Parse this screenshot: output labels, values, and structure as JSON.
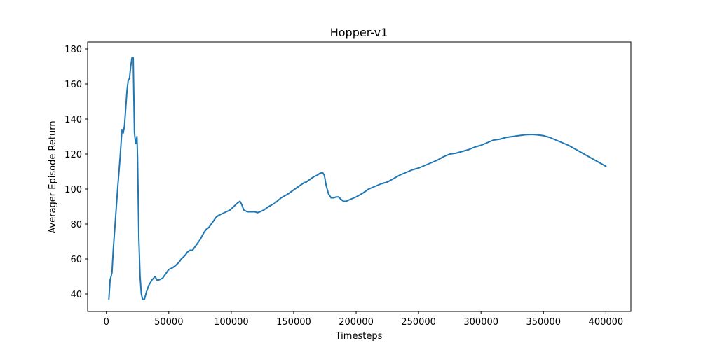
{
  "chart_data": {
    "type": "line",
    "title": "Hopper-v1",
    "xlabel": "Timesteps",
    "ylabel": "Averager Episode Return",
    "xlim": [
      -15000,
      420000
    ],
    "ylim": [
      30,
      184
    ],
    "grid": false,
    "legend": "none",
    "x_ticks": [
      0,
      50000,
      100000,
      150000,
      200000,
      250000,
      300000,
      350000,
      400000
    ],
    "x_tick_labels": [
      "0",
      "50000",
      "100000",
      "150000",
      "200000",
      "250000",
      "300000",
      "350000",
      "400000"
    ],
    "y_ticks": [
      40,
      60,
      80,
      100,
      120,
      140,
      160,
      180
    ],
    "y_tick_labels": [
      "40",
      "60",
      "80",
      "100",
      "120",
      "140",
      "160",
      "180"
    ],
    "series": [
      {
        "color": "#1f77b4",
        "x": [
          2000,
          3000,
          4500,
          5500,
          7000,
          9000,
          11000,
          12500,
          13500,
          14500,
          15500,
          16500,
          17500,
          18500,
          19500,
          20500,
          21500,
          22500,
          23500,
          24500,
          25000,
          26000,
          27000,
          28000,
          29000,
          30500,
          32000,
          34000,
          36500,
          39000,
          40500,
          42000,
          45000,
          48000,
          50000,
          53000,
          55000,
          58000,
          60000,
          63000,
          65000,
          67000,
          69000,
          72000,
          75000,
          78000,
          80000,
          82000,
          85000,
          88000,
          90000,
          93000,
          96000,
          99000,
          102000,
          105000,
          107000,
          108500,
          110000,
          113000,
          116000,
          119000,
          121000,
          123000,
          126000,
          130000,
          135000,
          140000,
          145000,
          150000,
          155000,
          158000,
          160000,
          163000,
          166000,
          169000,
          171000,
          173000,
          174500,
          176000,
          178000,
          180000,
          182000,
          184000,
          186000,
          188000,
          190000,
          192000,
          195000,
          200000,
          205000,
          210000,
          215000,
          220000,
          225000,
          230000,
          235000,
          240000,
          245000,
          250000,
          255000,
          260000,
          265000,
          270000,
          275000,
          280000,
          285000,
          290000,
          295000,
          300000,
          305000,
          310000,
          315000,
          320000,
          325000,
          330000,
          335000,
          340000,
          345000,
          350000,
          355000,
          360000,
          365000,
          370000,
          375000,
          380000,
          385000,
          390000,
          395000,
          400000
        ],
        "y": [
          37,
          48,
          52,
          65,
          80,
          100,
          118,
          134,
          132,
          136,
          146,
          156,
          162,
          163,
          170,
          175,
          175,
          132,
          126,
          130,
          118,
          72,
          50,
          40,
          37,
          37,
          41,
          45,
          48,
          50,
          48,
          48,
          49,
          52,
          54,
          55,
          56,
          58,
          60,
          62,
          64,
          65,
          65,
          68,
          71,
          75,
          77,
          78,
          81,
          84,
          85,
          86,
          87,
          88,
          90,
          92,
          93,
          91,
          88,
          87,
          87,
          87,
          86.5,
          87,
          88,
          90,
          92,
          95,
          97,
          99.5,
          102,
          103.5,
          104,
          105.5,
          107,
          108,
          109,
          109.5,
          108,
          102,
          97,
          95,
          95,
          95.5,
          95.5,
          94,
          93,
          93,
          94,
          95.5,
          97.5,
          100,
          101.5,
          103,
          104,
          106,
          108,
          109.5,
          111,
          112,
          113.5,
          115,
          116.5,
          118.5,
          120,
          120.5,
          121.5,
          122.5,
          124,
          125,
          126.5,
          128,
          128.5,
          129.5,
          130,
          130.5,
          131,
          131.2,
          131,
          130.5,
          129.5,
          128,
          126.5,
          125,
          123,
          121,
          119,
          117,
          115,
          113
        ]
      }
    ]
  }
}
